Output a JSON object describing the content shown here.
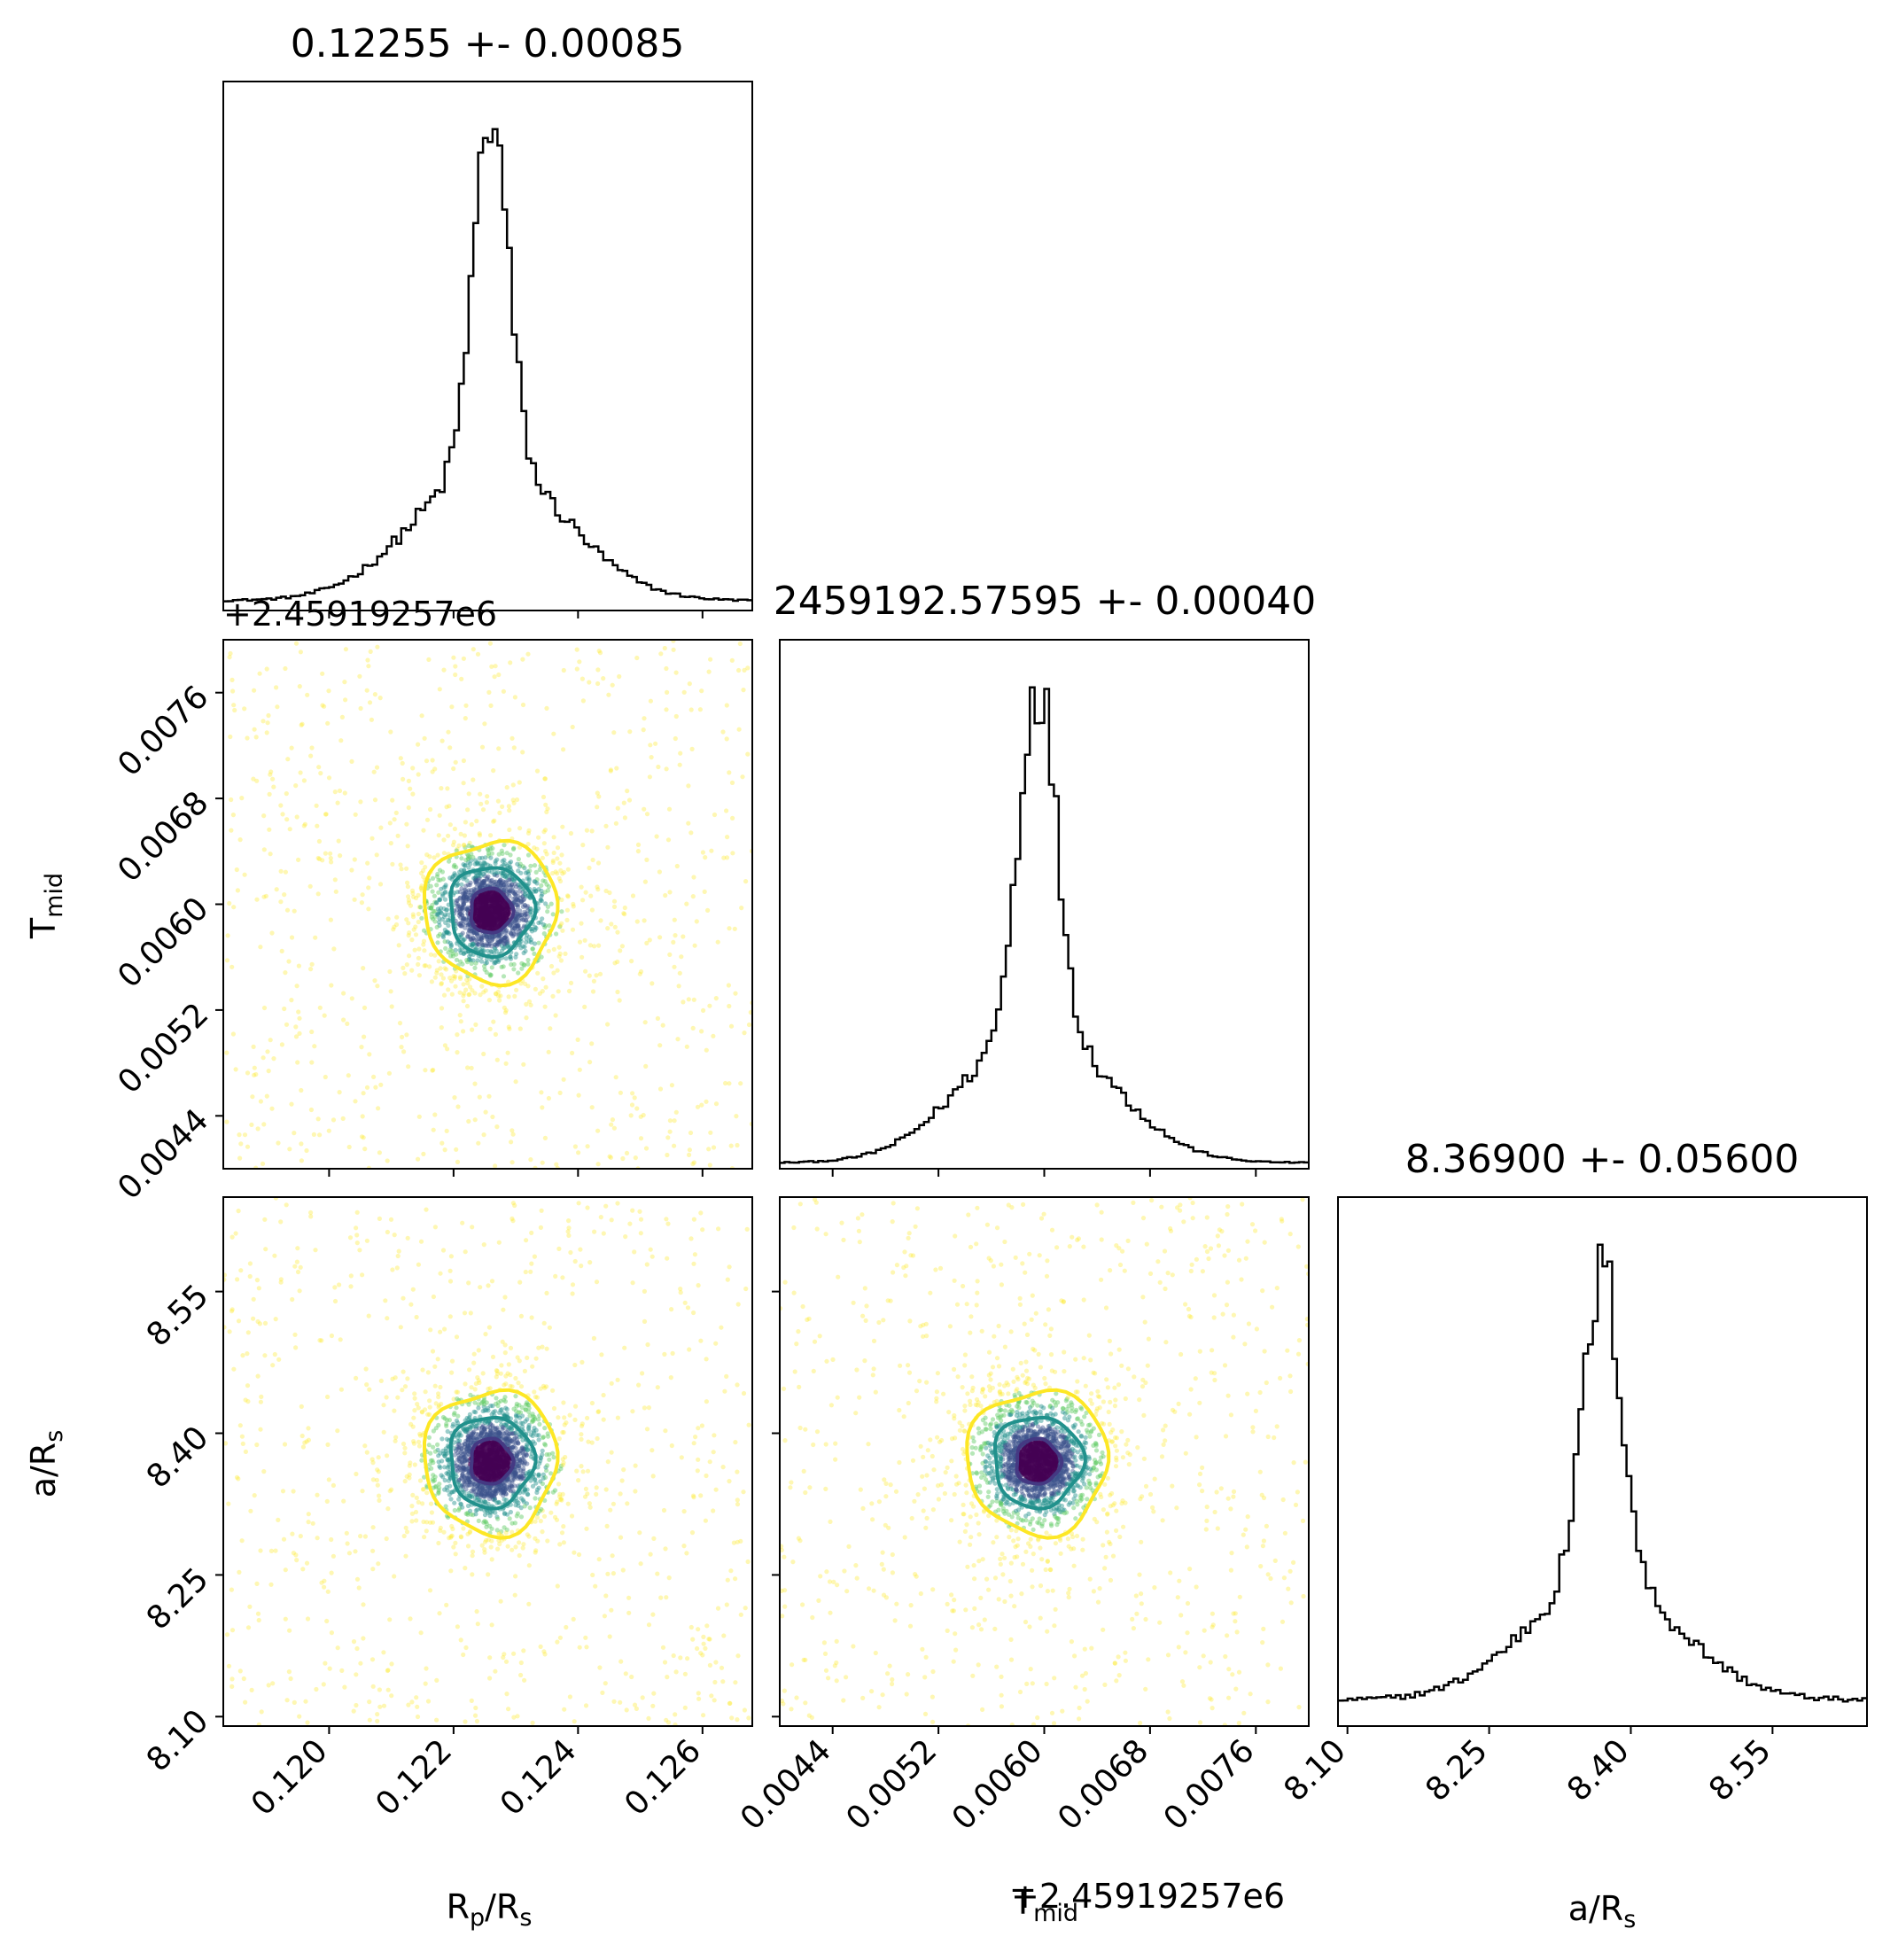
{
  "chart_data": {
    "type": "corner",
    "parameters": [
      "Rp/Rs",
      "Tmid",
      "a/Rs"
    ],
    "axis_labels": {
      "rp": {
        "main": "R",
        "sub1": "p",
        "mid": "/R",
        "sub2": "s"
      },
      "tmid": {
        "main": "T",
        "sub1": "mid"
      },
      "ars": {
        "main": "a/R",
        "sub1": "s"
      }
    },
    "offset_label": "+2.45919257e6",
    "titles": [
      "0.12255 +- 0.00085",
      "2459192.57595 +- 0.00040",
      "8.36900 +- 0.05600"
    ],
    "ranges": {
      "rp": [
        0.1183,
        0.1268
      ],
      "tmid": [
        0.004,
        0.008
      ],
      "ars": [
        8.09,
        8.65
      ]
    },
    "ticks": {
      "rp": [
        0.12,
        0.122,
        0.124,
        0.126
      ],
      "tmid": [
        0.0044,
        0.0052,
        0.006,
        0.0068,
        0.0076
      ],
      "ars": [
        8.1,
        8.25,
        8.4,
        8.55
      ]
    },
    "tick_labels": {
      "rp": [
        "0.120",
        "0.122",
        "0.124",
        "0.126"
      ],
      "tmid": [
        "0.0044",
        "0.0052",
        "0.0060",
        "0.0068",
        "0.0076"
      ],
      "ars": [
        "8.10",
        "8.25",
        "8.40",
        "8.55"
      ]
    },
    "medians": {
      "rp": 0.12255,
      "tmid": 0.00595,
      "ars": 8.369
    },
    "sigmas": {
      "rp": 0.00085,
      "tmid": 0.0004,
      "ars": 0.056
    },
    "histograms": {
      "rp": {
        "peak": 0.1226,
        "core_sigma": 0.00028,
        "wing_sigma": 0.0012,
        "tail_level": 0.05
      },
      "tmid": {
        "peak": 0.00595,
        "core_sigma": 0.00014,
        "wing_sigma": 0.00055,
        "tail_level": 0.03
      },
      "ars": {
        "peak": 8.37,
        "core_sigma": 0.02,
        "wing_sigma": 0.08,
        "tail_level": 0.15
      }
    },
    "contour_colors": {
      "inner": "#443983",
      "middle": "#21918c",
      "outer": "#fde725"
    },
    "scatter_colors": [
      "#440154",
      "#3b528b",
      "#21918c",
      "#5ec962",
      "#fde725"
    ],
    "hist_color": "#000000"
  }
}
